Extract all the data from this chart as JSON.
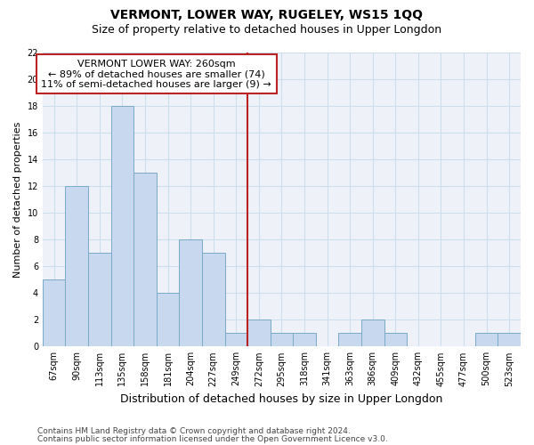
{
  "title": "VERMONT, LOWER WAY, RUGELEY, WS15 1QQ",
  "subtitle": "Size of property relative to detached houses in Upper Longdon",
  "xlabel": "Distribution of detached houses by size in Upper Longdon",
  "ylabel": "Number of detached properties",
  "categories": [
    "67sqm",
    "90sqm",
    "113sqm",
    "135sqm",
    "158sqm",
    "181sqm",
    "204sqm",
    "227sqm",
    "249sqm",
    "272sqm",
    "295sqm",
    "318sqm",
    "341sqm",
    "363sqm",
    "386sqm",
    "409sqm",
    "432sqm",
    "455sqm",
    "477sqm",
    "500sqm",
    "523sqm"
  ],
  "values": [
    5,
    12,
    7,
    18,
    13,
    4,
    8,
    7,
    1,
    2,
    1,
    1,
    0,
    1,
    2,
    1,
    0,
    0,
    0,
    1,
    1
  ],
  "bar_color": "#c8d8ee",
  "bar_edge_color": "#7aaac8",
  "vline_x": 8.5,
  "vline_color": "#bb2222",
  "annotation_line1": "VERMONT LOWER WAY: 260sqm",
  "annotation_line2": "← 89% of detached houses are smaller (74)",
  "annotation_line3": "11% of semi-detached houses are larger (9) →",
  "annotation_box_color": "#ffffff",
  "annotation_box_edge": "#bb2222",
  "ylim": [
    0,
    22
  ],
  "yticks": [
    0,
    2,
    4,
    6,
    8,
    10,
    12,
    14,
    16,
    18,
    20,
    22
  ],
  "grid_color": "#ccddee",
  "background_color": "#eef2f8",
  "footer_line1": "Contains HM Land Registry data © Crown copyright and database right 2024.",
  "footer_line2": "Contains public sector information licensed under the Open Government Licence v3.0.",
  "title_fontsize": 10,
  "subtitle_fontsize": 9,
  "xlabel_fontsize": 9,
  "ylabel_fontsize": 8,
  "tick_fontsize": 7,
  "annot_fontsize": 8,
  "footer_fontsize": 6.5
}
